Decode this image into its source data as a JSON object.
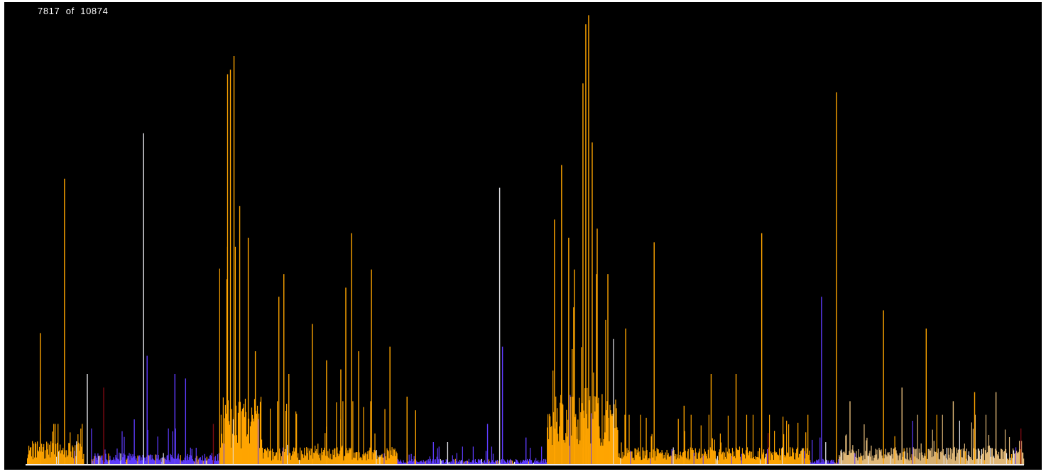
{
  "counter": {
    "current": "7817",
    "separator": "of",
    "total": "10874"
  },
  "colors": {
    "background": "#000000",
    "orange": "#ffa500",
    "blue": "#5f3cff",
    "white": "#e8e8ee",
    "tan": "#e0b878",
    "dark_red": "#7a0a12"
  },
  "chart_data": {
    "type": "bar",
    "title": "",
    "xlabel": "",
    "ylabel": "",
    "ylim": [
      0,
      100
    ],
    "categories_count": 1400,
    "spikes": [
      {
        "x": 18,
        "y": 29,
        "color": "orange"
      },
      {
        "x": 52,
        "y": 63,
        "color": "orange"
      },
      {
        "x": 84,
        "y": 20,
        "color": "white"
      },
      {
        "x": 107,
        "y": 17,
        "color": "dark_red"
      },
      {
        "x": 150,
        "y": 10,
        "color": "blue"
      },
      {
        "x": 163,
        "y": 73,
        "color": "white"
      },
      {
        "x": 168,
        "y": 24,
        "color": "blue"
      },
      {
        "x": 207,
        "y": 20,
        "color": "blue"
      },
      {
        "x": 222,
        "y": 19,
        "color": "blue"
      },
      {
        "x": 261,
        "y": 9,
        "color": "dark_red"
      },
      {
        "x": 281,
        "y": 86,
        "color": "orange"
      },
      {
        "x": 285,
        "y": 87,
        "color": "orange"
      },
      {
        "x": 290,
        "y": 90,
        "color": "orange"
      },
      {
        "x": 298,
        "y": 57,
        "color": "orange"
      },
      {
        "x": 310,
        "y": 50,
        "color": "orange"
      },
      {
        "x": 320,
        "y": 25,
        "color": "orange"
      },
      {
        "x": 353,
        "y": 37,
        "color": "orange"
      },
      {
        "x": 360,
        "y": 42,
        "color": "orange"
      },
      {
        "x": 367,
        "y": 20,
        "color": "orange"
      },
      {
        "x": 400,
        "y": 31,
        "color": "orange"
      },
      {
        "x": 420,
        "y": 23,
        "color": "orange"
      },
      {
        "x": 440,
        "y": 21,
        "color": "orange"
      },
      {
        "x": 447,
        "y": 39,
        "color": "orange"
      },
      {
        "x": 455,
        "y": 51,
        "color": "orange"
      },
      {
        "x": 465,
        "y": 25,
        "color": "orange"
      },
      {
        "x": 483,
        "y": 43,
        "color": "orange"
      },
      {
        "x": 509,
        "y": 26,
        "color": "orange"
      },
      {
        "x": 533,
        "y": 15,
        "color": "orange"
      },
      {
        "x": 545,
        "y": 12,
        "color": "orange"
      },
      {
        "x": 570,
        "y": 5,
        "color": "blue"
      },
      {
        "x": 590,
        "y": 5,
        "color": "white"
      },
      {
        "x": 646,
        "y": 9,
        "color": "blue"
      },
      {
        "x": 663,
        "y": 61,
        "color": "white"
      },
      {
        "x": 667,
        "y": 26,
        "color": "blue"
      },
      {
        "x": 700,
        "y": 6,
        "color": "blue"
      },
      {
        "x": 740,
        "y": 54,
        "color": "orange"
      },
      {
        "x": 750,
        "y": 66,
        "color": "orange"
      },
      {
        "x": 760,
        "y": 50,
        "color": "orange"
      },
      {
        "x": 768,
        "y": 43,
        "color": "orange"
      },
      {
        "x": 780,
        "y": 84,
        "color": "orange"
      },
      {
        "x": 784,
        "y": 97,
        "color": "orange"
      },
      {
        "x": 788,
        "y": 99,
        "color": "orange"
      },
      {
        "x": 793,
        "y": 71,
        "color": "orange"
      },
      {
        "x": 800,
        "y": 52,
        "color": "orange"
      },
      {
        "x": 815,
        "y": 42,
        "color": "orange"
      },
      {
        "x": 840,
        "y": 30,
        "color": "orange"
      },
      {
        "x": 880,
        "y": 49,
        "color": "orange"
      },
      {
        "x": 922,
        "y": 13,
        "color": "orange"
      },
      {
        "x": 960,
        "y": 20,
        "color": "orange"
      },
      {
        "x": 995,
        "y": 20,
        "color": "orange"
      },
      {
        "x": 1031,
        "y": 51,
        "color": "orange"
      },
      {
        "x": 1040,
        "y": 7,
        "color": "dark_red"
      },
      {
        "x": 1115,
        "y": 37,
        "color": "blue"
      },
      {
        "x": 1136,
        "y": 82,
        "color": "orange"
      },
      {
        "x": 1155,
        "y": 14,
        "color": "tan"
      },
      {
        "x": 1202,
        "y": 34,
        "color": "orange"
      },
      {
        "x": 1228,
        "y": 17,
        "color": "tan"
      },
      {
        "x": 1262,
        "y": 30,
        "color": "orange"
      },
      {
        "x": 1300,
        "y": 14,
        "color": "tan"
      },
      {
        "x": 1330,
        "y": 16,
        "color": "orange"
      },
      {
        "x": 1360,
        "y": 16,
        "color": "tan"
      },
      {
        "x": 1395,
        "y": 8,
        "color": "dark_red"
      }
    ],
    "clusters": [
      {
        "from": 0,
        "to": 80,
        "color": "orange",
        "base": 4,
        "max": 9
      },
      {
        "from": 90,
        "to": 270,
        "color": "blue",
        "base": 2,
        "max": 8
      },
      {
        "from": 270,
        "to": 330,
        "color": "orange",
        "base": 12,
        "max": 48
      },
      {
        "from": 330,
        "to": 520,
        "color": "orange",
        "base": 3,
        "max": 14
      },
      {
        "from": 520,
        "to": 730,
        "color": "blue",
        "base": 1,
        "max": 4
      },
      {
        "from": 730,
        "to": 830,
        "color": "orange",
        "base": 12,
        "max": 42
      },
      {
        "from": 830,
        "to": 1100,
        "color": "orange",
        "base": 3,
        "max": 11
      },
      {
        "from": 1100,
        "to": 1140,
        "color": "blue",
        "base": 1,
        "max": 6
      },
      {
        "from": 1140,
        "to": 1400,
        "color": "tan",
        "base": 3,
        "max": 11
      }
    ]
  }
}
